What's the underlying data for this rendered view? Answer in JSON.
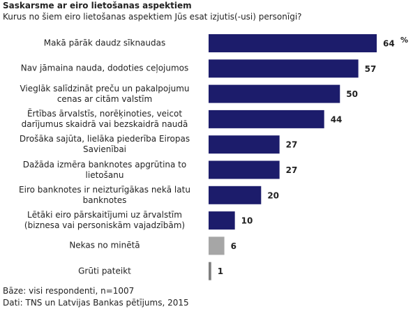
{
  "chart_data": {
    "type": "bar",
    "orientation": "horizontal",
    "title": "Saskarsme ar eiro lietošanas aspektiem",
    "subtitle": "Kurus no šiem eiro lietošanas aspektiem Jūs esat izjutis(-usi) personīgi?",
    "unit_label": "%",
    "categories": [
      "Makā pārāk daudz sīknaudas",
      "Nav jāmaina nauda, dodoties ceļojumos",
      "Vieglāk salīdzināt preču un pakalpojumu\ncenas ar citām valstīm",
      "Ērtības ārvalstīs, norēķinoties, veicot\ndarījumus skaidrā vai bezskaidrā naudā",
      "Drošāka sajūta, lielāka piederība Eiropas\nSavienībai",
      "Dažāda izmēra banknotes apgrūtina to\nlietošanu",
      "Eiro banknotes ir neizturīgākas nekā latu\nbanknotes",
      "Lētāki eiro pārskaitījumi uz ārvalstīm\n(biznesa vai personiskām vajadzībām)",
      "Nekas no minētā",
      "Grūti pateikt"
    ],
    "values": [
      64,
      57,
      50,
      44,
      27,
      27,
      20,
      10,
      6,
      1
    ],
    "colors": [
      "#1c1c6b",
      "#1c1c6b",
      "#1c1c6b",
      "#1c1c6b",
      "#1c1c6b",
      "#1c1c6b",
      "#1c1c6b",
      "#1c1c6b",
      "#a6a6a6",
      "#7f7f7f"
    ],
    "notes": [
      "Bāze: visi respondenti, n=1007",
      "Dati: TNS un Latvijas Bankas pētījums, 2015"
    ]
  }
}
